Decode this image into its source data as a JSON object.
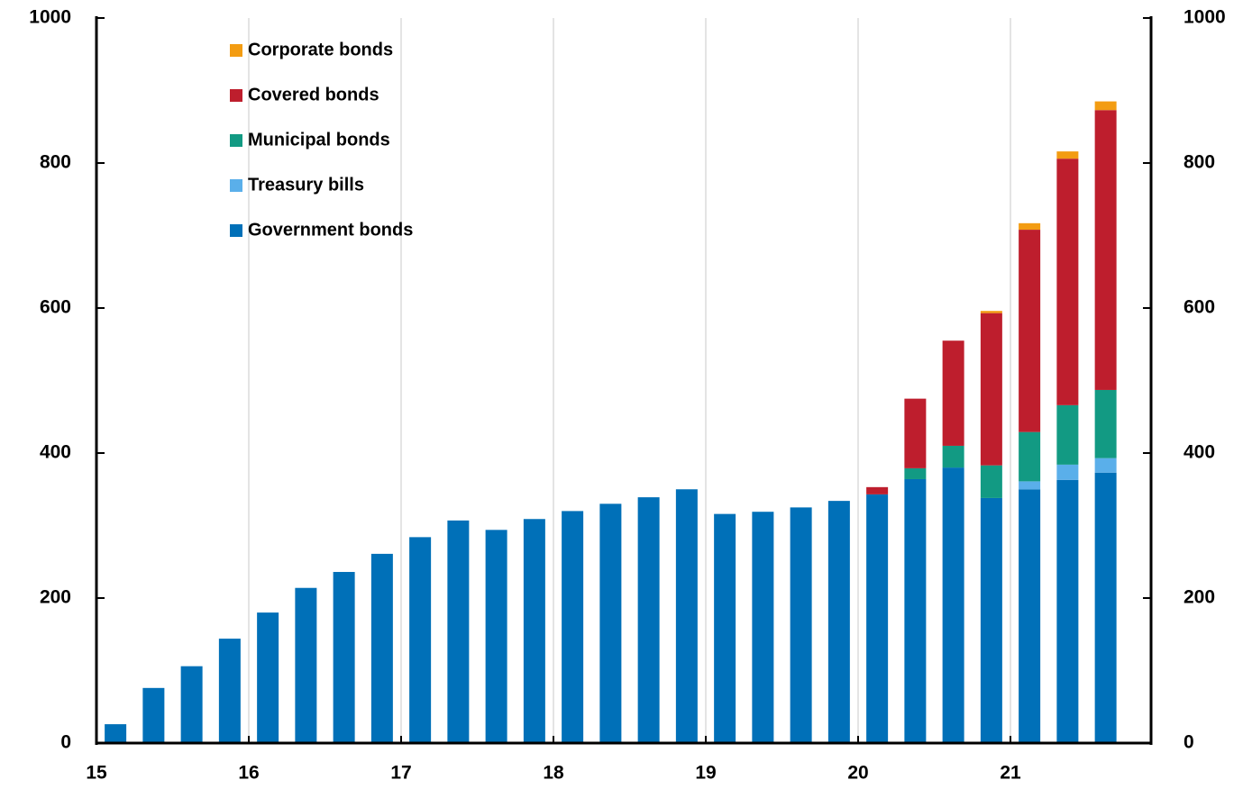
{
  "chart_data": {
    "type": "bar",
    "stacked": true,
    "categories": [
      "15",
      null,
      null,
      null,
      "16",
      null,
      null,
      null,
      "17",
      null,
      null,
      null,
      "18",
      null,
      null,
      null,
      "19",
      null,
      null,
      null,
      "20",
      null,
      null,
      null,
      "21",
      null,
      null
    ],
    "series": [
      {
        "name": "Government bonds",
        "color": "#0070b8",
        "values": [
          26,
          76,
          106,
          144,
          180,
          214,
          236,
          261,
          284,
          307,
          294,
          309,
          320,
          330,
          339,
          350,
          316,
          319,
          325,
          334,
          343,
          364,
          380,
          338,
          350,
          363,
          373
        ]
      },
      {
        "name": "Treasury bills",
        "color": "#5aafea",
        "values": [
          null,
          null,
          null,
          null,
          null,
          null,
          null,
          null,
          null,
          null,
          null,
          null,
          null,
          null,
          null,
          null,
          null,
          null,
          null,
          null,
          null,
          null,
          null,
          null,
          11,
          21,
          20
        ]
      },
      {
        "name": "Municipal bonds",
        "color": "#129a83",
        "values": [
          null,
          null,
          null,
          null,
          null,
          null,
          null,
          null,
          null,
          null,
          null,
          null,
          null,
          null,
          null,
          null,
          null,
          null,
          null,
          null,
          null,
          15,
          30,
          45,
          68,
          82,
          94
        ]
      },
      {
        "name": "Covered bonds",
        "color": "#be1e2d",
        "values": [
          null,
          null,
          null,
          null,
          null,
          null,
          null,
          null,
          null,
          null,
          null,
          null,
          null,
          null,
          null,
          null,
          null,
          null,
          null,
          null,
          10,
          96,
          145,
          210,
          279,
          340,
          386
        ]
      },
      {
        "name": "Corporate bonds",
        "color": "#f39c12",
        "values": [
          null,
          null,
          null,
          null,
          null,
          null,
          null,
          null,
          null,
          null,
          null,
          null,
          null,
          null,
          null,
          null,
          null,
          null,
          null,
          null,
          null,
          null,
          null,
          3,
          9,
          10,
          12
        ]
      }
    ],
    "ylim": [
      0,
      1000
    ],
    "yticks": [
      0,
      200,
      400,
      600,
      800,
      1000
    ],
    "y2lim": [
      0,
      1000
    ],
    "y2ticks": [
      0,
      200,
      400,
      600,
      800,
      1000
    ],
    "grid": true,
    "legend": "upper left"
  }
}
